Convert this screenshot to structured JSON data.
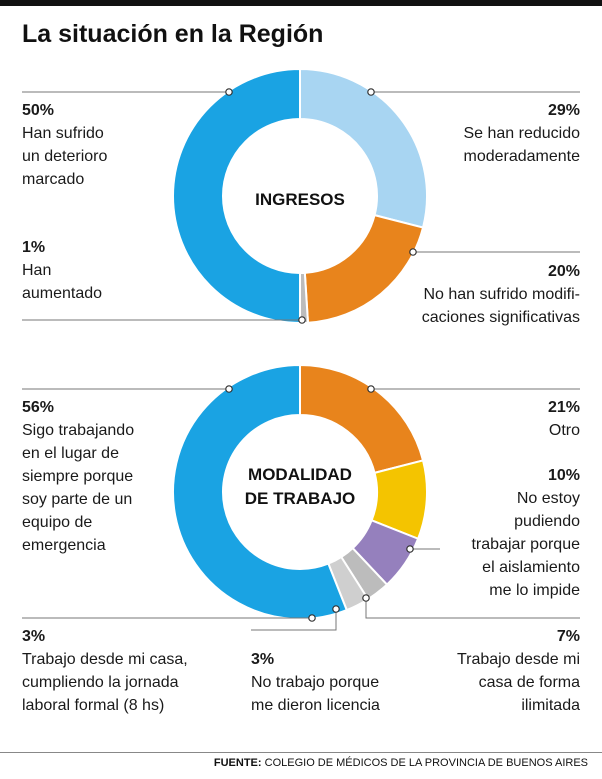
{
  "title": "La situación en la Región",
  "chart_data": [
    {
      "type": "pie",
      "center_label": "INGRESOS",
      "slices": [
        {
          "label": "Se han reducido moderadamente",
          "value": 29,
          "pct": "29%",
          "text": "Se han reducido\nmoderadamente",
          "color": "#a8d5f2"
        },
        {
          "label": "No han sufrido modificaciones significativas",
          "value": 20,
          "pct": "20%",
          "text": "No han sufrido modifi-\ncaciones significativas",
          "color": "#e8841c"
        },
        {
          "label": "Han aumentado",
          "value": 1,
          "pct": "1%",
          "text": "Han\naumentado",
          "color": "#bcbcbc"
        },
        {
          "label": "Han sufrido un deterioro marcado",
          "value": 50,
          "pct": "50%",
          "text": "Han sufrido\nun deterioro\nmarcado",
          "color": "#1aa3e3"
        }
      ]
    },
    {
      "type": "pie",
      "center_label": "MODALIDAD\nDE TRABAJO",
      "slices": [
        {
          "label": "Otro",
          "value": 21,
          "pct": "21%",
          "text": "Otro",
          "color": "#e8841c"
        },
        {
          "label": "No estoy pudiendo trabajar porque el aislamiento me lo impide",
          "value": 10,
          "pct": "10%",
          "text": "No estoy\npudiendo\ntrabajar porque\nel aislamiento\nme lo impide",
          "color": "#f4c400"
        },
        {
          "label": "Trabajo desde mi casa de forma ilimitada",
          "value": 7,
          "pct": "7%",
          "text": "Trabajo desde mi\ncasa de forma\nilimitada",
          "color": "#9580bd"
        },
        {
          "label": "No trabajo porque me dieron licencia",
          "value": 3,
          "pct": "3%",
          "text": "No trabajo porque\nme dieron licencia",
          "color": "#bcbcbc"
        },
        {
          "label": "Trabajo desde mi casa, cumpliendo la jornada laboral formal (8 hs)",
          "value": 3,
          "pct": "3%",
          "text": "Trabajo desde mi casa,\ncumpliendo la jornada\nlaboral formal (8 hs)",
          "color": "#cfcfcf"
        },
        {
          "label": "Sigo trabajando en el lugar de siempre porque soy parte de un equipo de emergencia",
          "value": 56,
          "pct": "56%",
          "text": "Sigo trabajando\nen el lugar de\nsiempre porque\nsoy parte de un\nequipo de\nemergencia",
          "color": "#1aa3e3"
        }
      ]
    }
  ],
  "footer": {
    "prefix": "FUENTE:",
    "text": "COLEGIO DE MÉDICOS DE LA PROVINCIA DE BUENOS AIRES"
  }
}
